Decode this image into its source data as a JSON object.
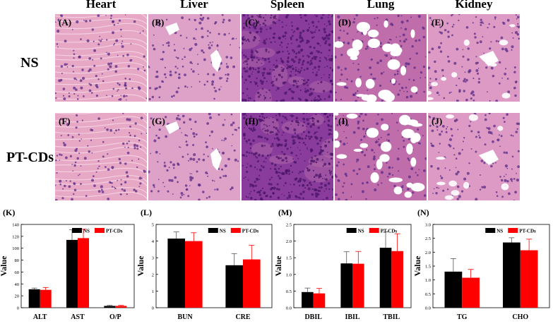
{
  "column_titles": [
    "Heart",
    "Liver",
    "Spleen",
    "Lung",
    "Kidney"
  ],
  "row_labels": [
    "NS",
    "PT-CDs"
  ],
  "panel_labels": [
    "(A)",
    "(B)",
    "(C)",
    "(D)",
    "(E)",
    "(F)",
    "(G)",
    "(H)",
    "(I)",
    "(J)"
  ],
  "colors": {
    "ns": "#000000",
    "ptcds": "#ff0000",
    "heart": "#e7a8c6",
    "liver": "#dea2c9",
    "spleen": "#8a3c9c",
    "lung": "#c06dac",
    "kidney": "#dc9ac4"
  },
  "chart_data": [
    {
      "type": "bar",
      "panel_label": "(K)",
      "categories": [
        "ALT",
        "AST",
        "O/P"
      ],
      "series": [
        {
          "name": "NS",
          "values": [
            31,
            114,
            3
          ],
          "errors": [
            2,
            17,
            1
          ]
        },
        {
          "name": "PT-CDs",
          "values": [
            30,
            117,
            3
          ],
          "errors": [
            4,
            15,
            1
          ]
        }
      ],
      "ylabel": "Value",
      "ylim": [
        0,
        140
      ],
      "yticks": [
        "0",
        "20",
        "40",
        "60",
        "80",
        "100",
        "120",
        "140"
      ],
      "legend": "top"
    },
    {
      "type": "bar",
      "panel_label": "(L)",
      "categories": [
        "BUN",
        "CRE"
      ],
      "series": [
        {
          "name": "NS",
          "values": [
            4.15,
            2.55
          ],
          "errors": [
            0.4,
            0.7
          ]
        },
        {
          "name": "PT-CDs",
          "values": [
            4.0,
            2.9
          ],
          "errors": [
            0.5,
            0.85
          ]
        }
      ],
      "ylabel": "Value",
      "ylim": [
        0,
        5
      ],
      "yticks": [
        "0",
        "1",
        "2",
        "3",
        "4",
        "5"
      ],
      "legend": "top-right"
    },
    {
      "type": "bar",
      "panel_label": "(M)",
      "categories": [
        "DBIL",
        "IBIL",
        "TBIL"
      ],
      "series": [
        {
          "name": "NS",
          "values": [
            0.47,
            1.33,
            1.8
          ],
          "errors": [
            0.12,
            0.35,
            0.47
          ]
        },
        {
          "name": "PT-CDs",
          "values": [
            0.43,
            1.32,
            1.7
          ],
          "errors": [
            0.15,
            0.37,
            0.52
          ]
        }
      ],
      "ylabel": "Value",
      "ylim": [
        0,
        2.5
      ],
      "yticks": [
        "0.0",
        "0.5",
        "1.0",
        "1.5",
        "2.0",
        "2.5"
      ],
      "legend": "top-right"
    },
    {
      "type": "bar",
      "panel_label": "(N)",
      "categories": [
        "TG",
        "CHO"
      ],
      "series": [
        {
          "name": "NS",
          "values": [
            1.3,
            2.35
          ],
          "errors": [
            0.47,
            0.17
          ]
        },
        {
          "name": "PT-CDs",
          "values": [
            1.08,
            2.07
          ],
          "errors": [
            0.3,
            0.4
          ]
        }
      ],
      "ylabel": "Value",
      "ylim": [
        0,
        3.0
      ],
      "yticks": [
        "0.0",
        "0.5",
        "1.0",
        "1.5",
        "2.0",
        "2.5",
        "3.0"
      ],
      "legend": "top-right"
    }
  ]
}
